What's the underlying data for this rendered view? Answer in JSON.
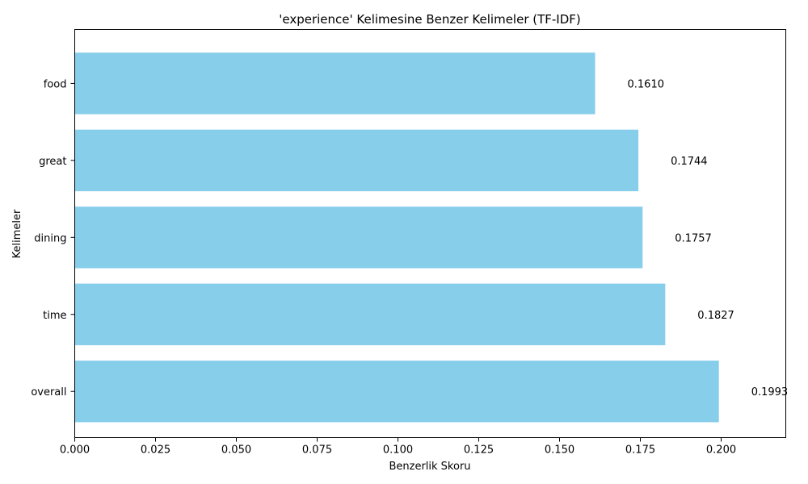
{
  "chart_data": {
    "type": "bar",
    "orientation": "horizontal",
    "title": "'experience' Kelimesine Benzer Kelimeler (TF-IDF)",
    "xlabel": "Benzerlik Skoru",
    "ylabel": "Kelimeler",
    "categories": [
      "overall",
      "time",
      "dining",
      "great",
      "food"
    ],
    "values": [
      0.1993,
      0.1827,
      0.1757,
      0.1744,
      0.161
    ],
    "value_labels": [
      "0.1993",
      "0.1827",
      "0.1757",
      "0.1744",
      "0.1610"
    ],
    "xlim": [
      0,
      0.22
    ],
    "xticks": [
      "0.000",
      "0.025",
      "0.050",
      "0.075",
      "0.100",
      "0.125",
      "0.150",
      "0.175",
      "0.200"
    ],
    "grid": false,
    "legend": "none",
    "bar_color": "#87CEEB"
  }
}
